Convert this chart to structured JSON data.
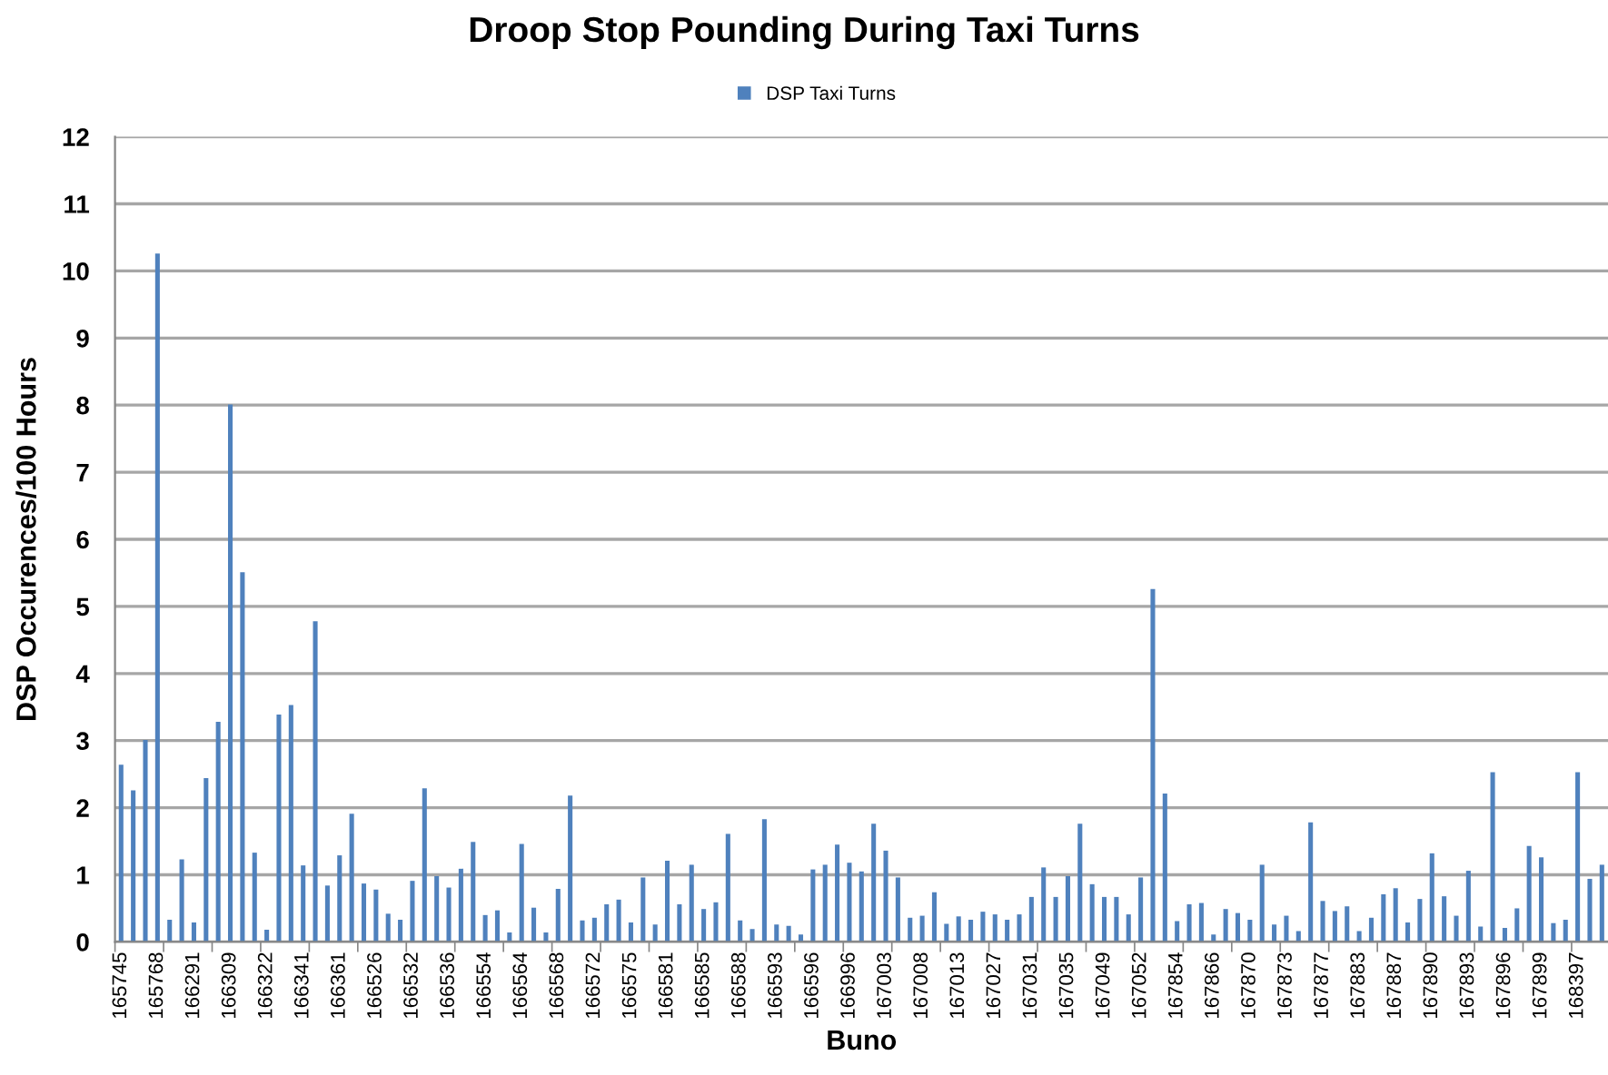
{
  "chart_data": {
    "type": "bar",
    "title": "Droop Stop Pounding During Taxi Turns",
    "xlabel": "Buno",
    "ylabel": "DSP Occurences/100 Hours",
    "categories": [
      "165745",
      null,
      null,
      "165768",
      null,
      null,
      "166291",
      null,
      null,
      "166309",
      null,
      null,
      "166322",
      null,
      null,
      "166341",
      null,
      null,
      "166361",
      null,
      null,
      "166526",
      null,
      null,
      "166532",
      null,
      null,
      "166536",
      null,
      null,
      "166554",
      null,
      null,
      "166564",
      null,
      null,
      "166568",
      null,
      null,
      "166572",
      null,
      null,
      "166575",
      null,
      null,
      "166581",
      null,
      null,
      "166585",
      null,
      null,
      "166588",
      null,
      null,
      "166593",
      null,
      null,
      "166596",
      null,
      null,
      "166996",
      null,
      null,
      "167003",
      null,
      null,
      "167008",
      null,
      null,
      "167013",
      null,
      null,
      "167027",
      null,
      null,
      "167031",
      null,
      null,
      "167035",
      null,
      null,
      "167049",
      null,
      null,
      "167052",
      null,
      null,
      "167854",
      null,
      null,
      "167866",
      null,
      null,
      "167870",
      null,
      null,
      "167873",
      null,
      null,
      "167877",
      null,
      null,
      "167883",
      null,
      null,
      "167887",
      null,
      null,
      "167890",
      null,
      null,
      "167893",
      null,
      null,
      "167896",
      null,
      null,
      "167899",
      null,
      null,
      "168397",
      null,
      null
    ],
    "series": [
      {
        "name": "DSP Taxi Turns",
        "color": "#4f81bd",
        "values": [
          2.64,
          2.26,
          3.01,
          10.26,
          0.33,
          1.23,
          0.29,
          2.44,
          3.28,
          8.01,
          5.51,
          1.33,
          0.18,
          3.39,
          3.53,
          1.14,
          4.78,
          0.84,
          1.29,
          1.91,
          0.87,
          0.78,
          0.42,
          0.33,
          0.91,
          2.29,
          0.98,
          0.81,
          1.09,
          1.49,
          0.4,
          0.47,
          0.14,
          1.46,
          0.51,
          0.14,
          0.79,
          2.18,
          0.32,
          0.36,
          0.56,
          0.63,
          0.29,
          0.96,
          0.26,
          1.21,
          0.56,
          1.15,
          0.49,
          0.59,
          1.61,
          0.32,
          0.19,
          1.83,
          0.26,
          0.24,
          0.11,
          1.08,
          1.15,
          1.45,
          1.18,
          1.05,
          1.76,
          1.36,
          0.96,
          0.36,
          0.39,
          0.74,
          0.27,
          0.38,
          0.33,
          0.45,
          0.41,
          0.33,
          0.41,
          0.67,
          1.11,
          0.67,
          0.98,
          1.76,
          0.86,
          0.67,
          0.67,
          0.41,
          0.96,
          5.26,
          2.21,
          0.31,
          0.56,
          0.58,
          0.11,
          0.49,
          0.43,
          0.33,
          1.15,
          0.26,
          0.39,
          0.16,
          1.78,
          0.61,
          0.46,
          0.53,
          0.16,
          0.36,
          0.71,
          0.8,
          0.29,
          0.64,
          1.32,
          0.68,
          0.39,
          1.06,
          0.23,
          2.53,
          0.21,
          0.5,
          1.43,
          1.26,
          0.28,
          0.33,
          2.53,
          0.94,
          1.15
        ]
      }
    ],
    "ylim": [
      0,
      12
    ],
    "yticks": [
      0,
      1,
      2,
      3,
      4,
      5,
      6,
      7,
      8,
      9,
      10,
      11,
      12
    ],
    "grid": "y",
    "legend": "top"
  }
}
